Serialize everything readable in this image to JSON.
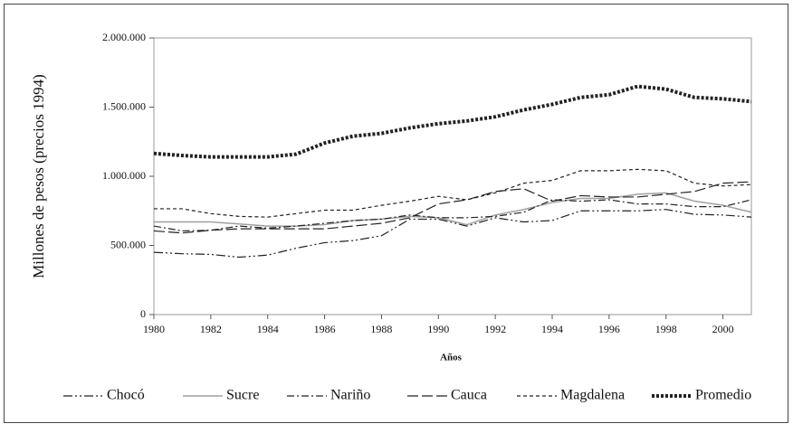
{
  "chart_data": {
    "type": "line",
    "y_label": "Millones de pesos (precios 1994)",
    "x_label": "Años",
    "x": [
      1980,
      1981,
      1982,
      1983,
      1984,
      1985,
      1986,
      1987,
      1988,
      1989,
      1990,
      1991,
      1992,
      1993,
      1994,
      1995,
      1996,
      1997,
      1998,
      1999,
      2000,
      2001
    ],
    "xlim": [
      1980,
      2001
    ],
    "xticks": [
      1980,
      1982,
      1984,
      1986,
      1988,
      1990,
      1992,
      1994,
      1996,
      1998,
      2000
    ],
    "ylim": [
      0,
      2000000
    ],
    "yticks": [
      0,
      {
        "value": 500000,
        "label": "500.000"
      },
      {
        "value": 1000000,
        "label": "1.000.000"
      },
      {
        "value": 1500000,
        "label": "1.500.000"
      },
      {
        "value": 2000000,
        "label": "2.000.000"
      }
    ],
    "series": [
      {
        "name": "Chocó",
        "color": "#222222",
        "values": [
          450000,
          440000,
          435000,
          415000,
          430000,
          480000,
          520000,
          535000,
          570000,
          690000,
          690000,
          640000,
          700000,
          670000,
          680000,
          750000,
          750000,
          750000,
          760000,
          725000,
          720000,
          705000
        ]
      },
      {
        "name": "Sucre",
        "color": "#a0a0a0",
        "values": [
          670000,
          670000,
          670000,
          655000,
          640000,
          640000,
          650000,
          680000,
          690000,
          710000,
          700000,
          650000,
          720000,
          760000,
          810000,
          840000,
          840000,
          870000,
          880000,
          820000,
          790000,
          740000
        ]
      },
      {
        "name": "Nariño",
        "color": "#222222",
        "values": [
          640000,
          605000,
          610000,
          640000,
          625000,
          640000,
          660000,
          680000,
          690000,
          720000,
          700000,
          700000,
          710000,
          740000,
          830000,
          820000,
          830000,
          800000,
          800000,
          780000,
          780000,
          830000
        ]
      },
      {
        "name": "Cauca",
        "color": "#222222",
        "values": [
          605000,
          590000,
          610000,
          620000,
          620000,
          620000,
          620000,
          640000,
          660000,
          700000,
          800000,
          830000,
          890000,
          910000,
          820000,
          860000,
          850000,
          850000,
          870000,
          890000,
          950000,
          960000
        ]
      },
      {
        "name": "Magdalena",
        "color": "#222222",
        "values": [
          765000,
          765000,
          730000,
          710000,
          705000,
          730000,
          755000,
          755000,
          790000,
          820000,
          855000,
          830000,
          880000,
          950000,
          970000,
          1040000,
          1040000,
          1050000,
          1040000,
          950000,
          930000,
          940000
        ]
      },
      {
        "name": "Promedio",
        "color": "#222222",
        "values": [
          1165000,
          1150000,
          1140000,
          1140000,
          1140000,
          1160000,
          1240000,
          1290000,
          1310000,
          1350000,
          1380000,
          1400000,
          1430000,
          1480000,
          1520000,
          1570000,
          1590000,
          1650000,
          1630000,
          1570000,
          1560000,
          1540000
        ]
      }
    ]
  }
}
